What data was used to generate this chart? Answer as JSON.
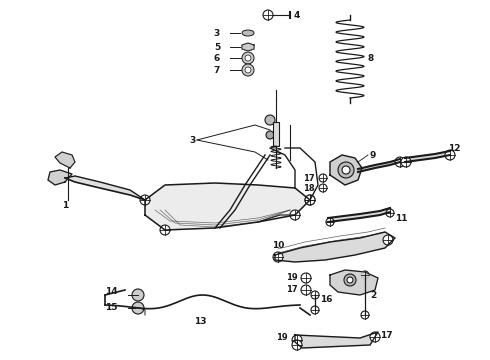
{
  "background_color": "#ffffff",
  "line_color": "#1a1a1a",
  "fig_width": 4.9,
  "fig_height": 3.6,
  "dpi": 100,
  "gray": "#555555",
  "dark": "#222222"
}
